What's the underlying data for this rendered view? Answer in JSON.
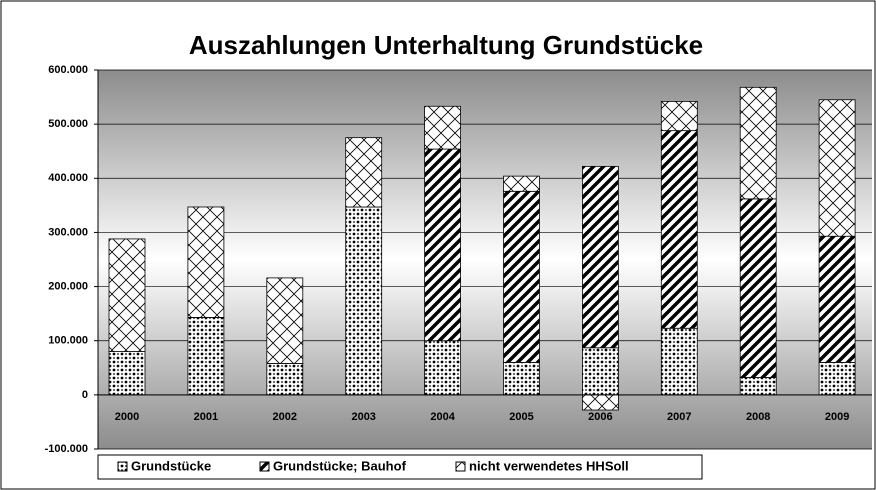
{
  "chart_data": {
    "type": "stacked_bar",
    "title": "Auszahlungen Unterhaltung Grundstücke",
    "categories": [
      "2000",
      "2001",
      "2002",
      "2003",
      "2004",
      "2005",
      "2006",
      "2007",
      "2008",
      "2009"
    ],
    "series": [
      {
        "name": "Grundstücke",
        "color": "#000000",
        "pattern": "dots",
        "values": [
          80000,
          143000,
          58000,
          347000,
          100000,
          60000,
          87000,
          123000,
          32000,
          60000
        ]
      },
      {
        "name": "Grundstücke; Bauhof",
        "color": "#000000",
        "pattern": "stripes",
        "values": [
          0,
          0,
          0,
          0,
          354000,
          316000,
          335000,
          365000,
          330000,
          233000
        ]
      },
      {
        "name": "nicht verwendetes HHSoll",
        "color": "#000000",
        "pattern": "crosshatch",
        "values": [
          208000,
          204000,
          158000,
          128000,
          79000,
          28000,
          -28000,
          54000,
          206000,
          252000
        ]
      }
    ],
    "ylim": [
      -100000,
      600000
    ],
    "yticks": [
      {
        "value": -100000,
        "label": "-100.000"
      },
      0,
      {
        "value": 100000,
        "label": "100.000"
      },
      {
        "value": 200000,
        "label": "200.000"
      },
      {
        "value": 300000,
        "label": "300.000"
      },
      {
        "value": 400000,
        "label": "400.000"
      },
      {
        "value": 500000,
        "label": "500.000"
      },
      {
        "value": 600000,
        "label": "600.000"
      }
    ],
    "grid": true,
    "legend": "bottom"
  }
}
